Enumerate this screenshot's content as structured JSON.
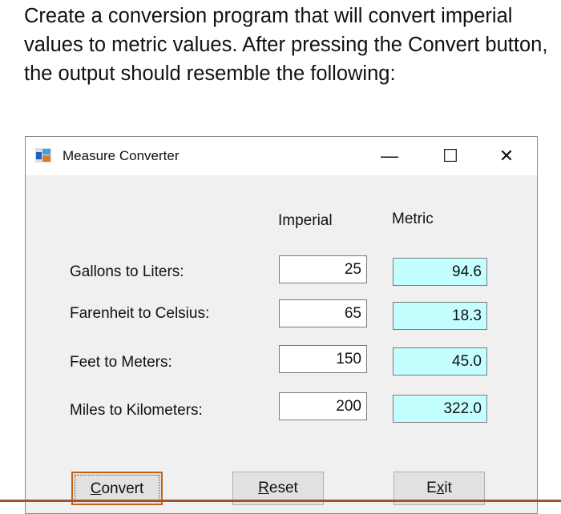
{
  "prompt": "Create a conversion program that will convert imperial values to metric values.  After pressing the Convert button, the  output should resemble the following:",
  "window": {
    "title": "Measure Converter",
    "icon": "windows-form-icon",
    "controls": {
      "minimize": "—",
      "maximize": "☐",
      "close": "✕"
    }
  },
  "headers": {
    "imperial": "Imperial",
    "metric": "Metric"
  },
  "rows": [
    {
      "label": "Gallons to Liters:",
      "imperial": "25",
      "metric": "94.6"
    },
    {
      "label": "Farenheit to Celsius:",
      "imperial": "65",
      "metric": "18.3"
    },
    {
      "label": "Feet to Meters:",
      "imperial": "150",
      "metric": "45.0"
    },
    {
      "label": "Miles to Kilometers:",
      "imperial": "200",
      "metric": "322.0"
    }
  ],
  "buttons": {
    "convert": {
      "pre": "",
      "key": "C",
      "post": "onvert"
    },
    "reset": {
      "pre": "",
      "key": "R",
      "post": "eset"
    },
    "exit": {
      "pre": "E",
      "key": "x",
      "post": "it"
    }
  },
  "colors": {
    "metric_bg": "#c4ffff",
    "default_button_border": "#c0641a",
    "form_bg": "#f0f0f0"
  }
}
